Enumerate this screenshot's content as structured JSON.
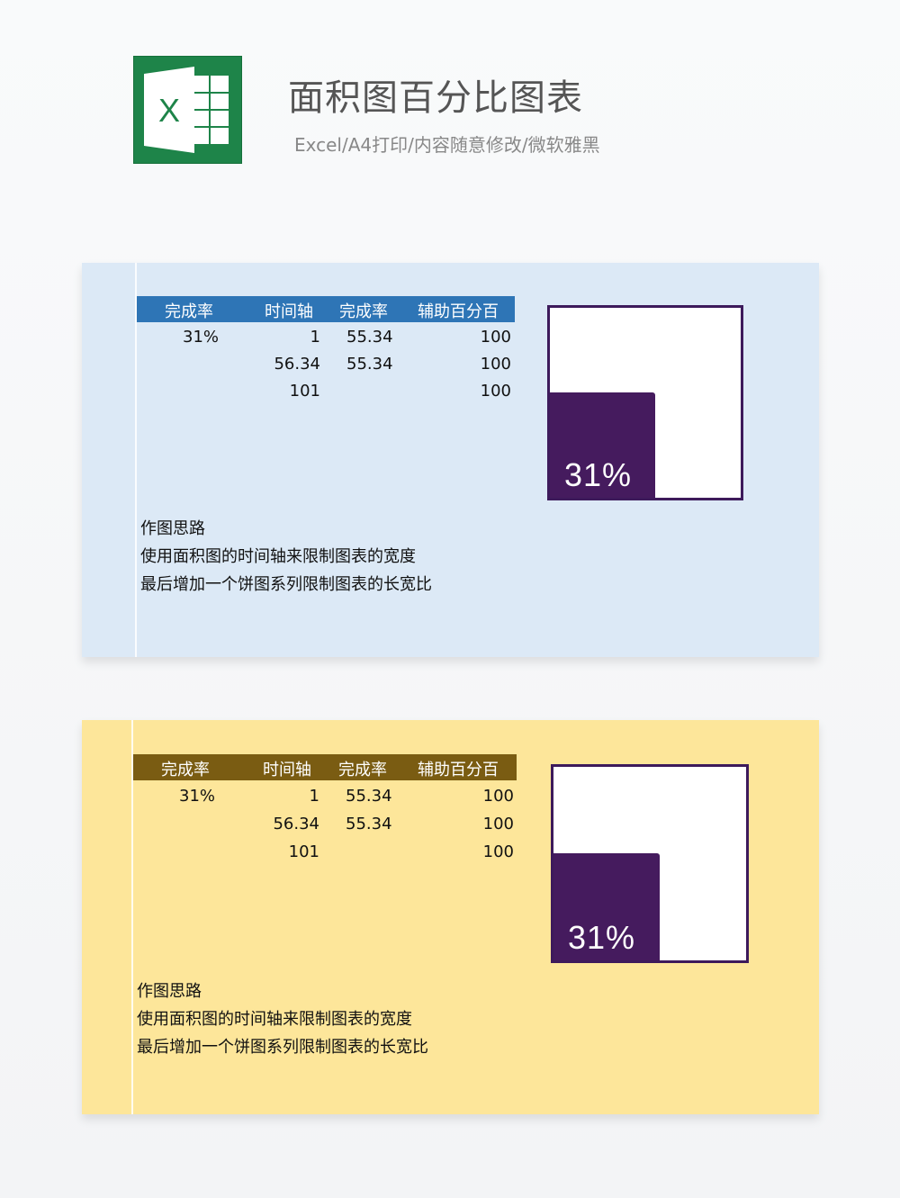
{
  "header": {
    "title": "面积图百分比图表",
    "subtitle": "Excel/A4打印/内容随意修改/微软雅黑",
    "logo_letter": "X",
    "logo_icon": "excel-logo-icon",
    "logo_color": "#1e8449"
  },
  "panels": [
    {
      "theme": "blue",
      "colors": {
        "header_bg": "#2e75b6",
        "panel_bg": "#dce9f6",
        "fill": "#451b5e"
      },
      "table": {
        "headers": [
          "完成率",
          "时间轴",
          "完成率",
          "辅助百分百"
        ],
        "rows": [
          [
            "31%",
            "1",
            "55.34",
            "100"
          ],
          [
            "",
            "56.34",
            "55.34",
            "100"
          ],
          [
            "",
            "101",
            "",
            "100"
          ]
        ]
      },
      "notes": [
        "作图思路",
        "使用面积图的时间轴来限制图表的宽度",
        "最后增加一个饼图系列限制图表的长宽比"
      ],
      "chart_data": {
        "type": "area",
        "x": [
          1,
          56.34,
          101
        ],
        "series": [
          {
            "values": [
              55.34,
              55.34,
              null
            ]
          },
          {
            "values": [
              100,
              100,
              100
            ]
          }
        ],
        "xlim": [
          1,
          101
        ],
        "ylim": [
          0,
          100
        ],
        "label": "31%",
        "completion": 0.31
      }
    },
    {
      "theme": "yellow",
      "colors": {
        "header_bg": "#7a5c12",
        "panel_bg": "#fde69a",
        "fill": "#451b5e"
      },
      "table": {
        "headers": [
          "完成率",
          "时间轴",
          "完成率",
          "辅助百分百"
        ],
        "rows": [
          [
            "31%",
            "1",
            "55.34",
            "100"
          ],
          [
            "",
            "56.34",
            "55.34",
            "100"
          ],
          [
            "",
            "101",
            "",
            "100"
          ]
        ]
      },
      "notes": [
        "作图思路",
        "使用面积图的时间轴来限制图表的宽度",
        "最后增加一个饼图系列限制图表的长宽比"
      ],
      "chart_data": {
        "type": "area",
        "x": [
          1,
          56.34,
          101
        ],
        "series": [
          {
            "values": [
              55.34,
              55.34,
              null
            ]
          },
          {
            "values": [
              100,
              100,
              100
            ]
          }
        ],
        "xlim": [
          1,
          101
        ],
        "ylim": [
          0,
          100
        ],
        "label": "31%",
        "completion": 0.31
      }
    }
  ]
}
